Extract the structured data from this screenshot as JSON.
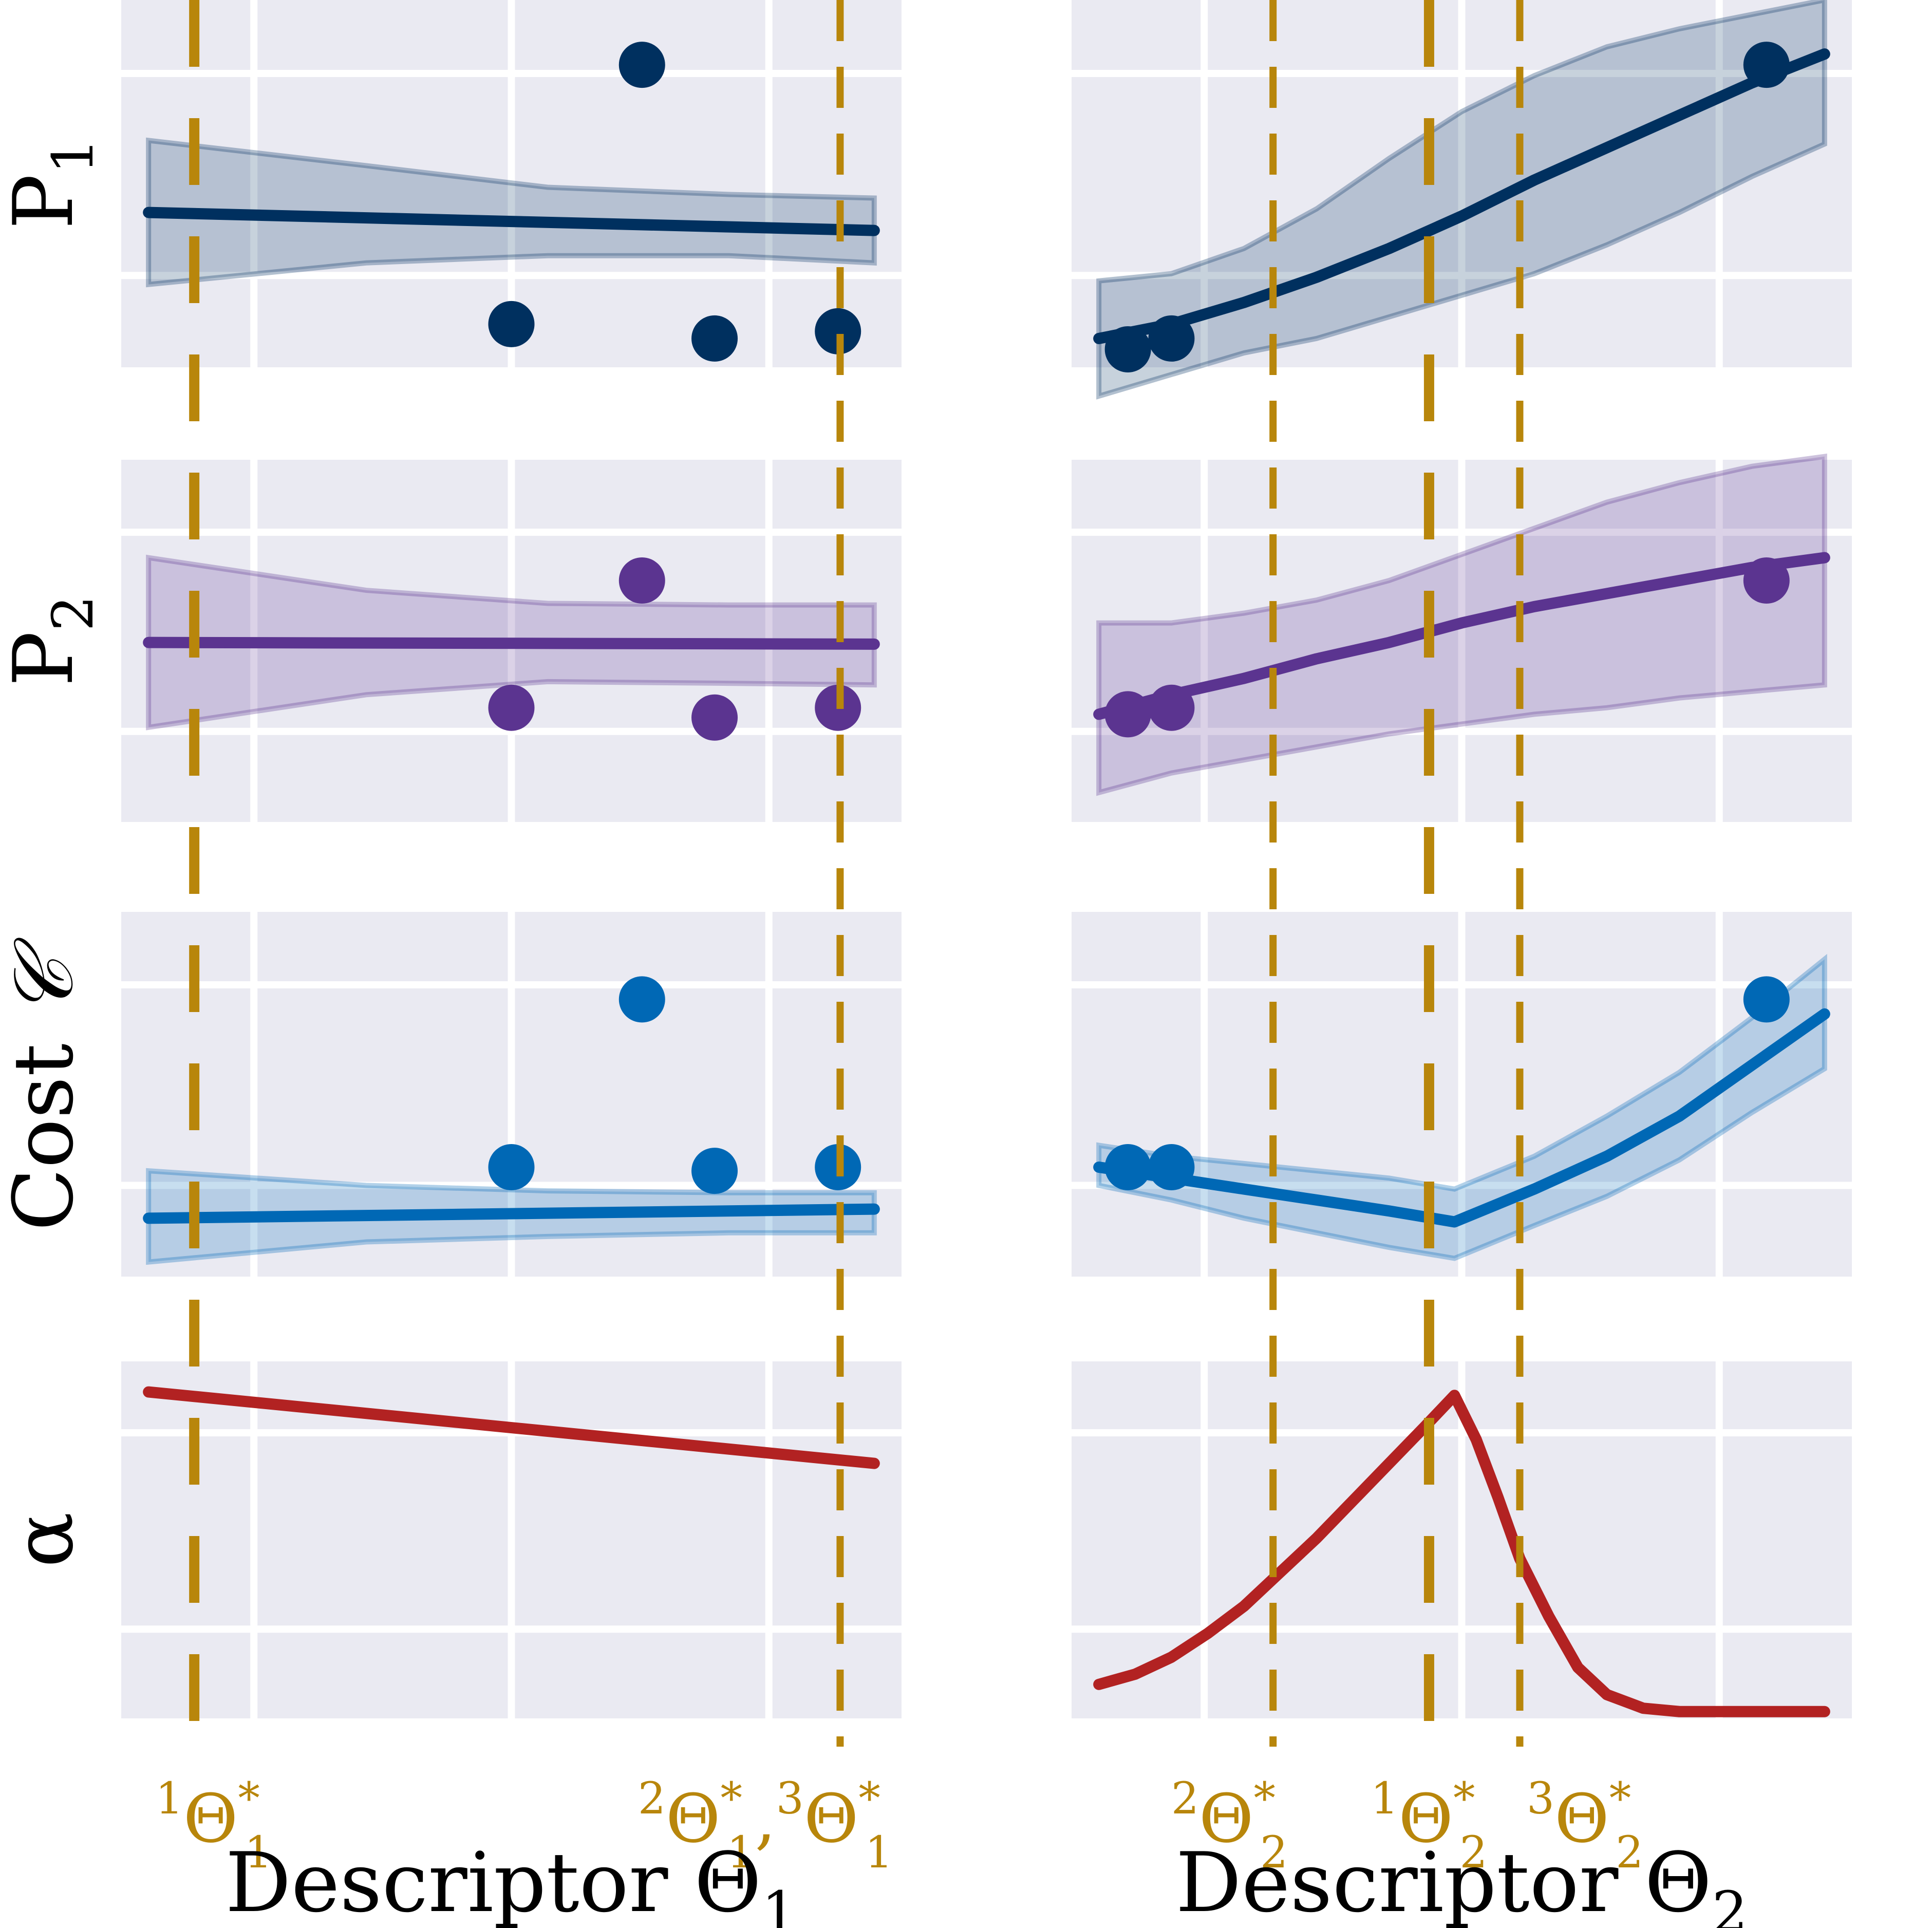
{
  "colors": {
    "panel_bg": "#eaeaf2",
    "grid": "#ffffff",
    "optimum_marker": "#b8860b",
    "P1": "#00305f",
    "P2": "#5b3490",
    "cost": "#0068b5",
    "alpha": "#b22222"
  },
  "chart_data": {
    "type": "line",
    "layout": "4 rows x 2 columns, shared y per row, shared x per column",
    "rows": [
      {
        "key": "P1",
        "ylabel_main": "P",
        "ylabel_sub": "1",
        "ylim": [
          0.8,
          11.0
        ]
      },
      {
        "key": "P2",
        "ylabel_main": "P",
        "ylabel_sub": "2",
        "ylim": [
          -0.3,
          10.8
        ]
      },
      {
        "key": "cost",
        "ylabel_main": "Cost ",
        "ylabel_symbol": "𝒞",
        "ylim": [
          0.4,
          10.4
        ]
      },
      {
        "key": "alpha",
        "ylabel_main": "α",
        "ylim": [
          0,
          1.05
        ]
      }
    ],
    "columns": [
      {
        "xlabel_main": "Descriptor Θ",
        "xlabel_sub": "1",
        "xlim": [
          0,
          1
        ],
        "optima": [
          {
            "x": 0.063,
            "dash": "long"
          },
          {
            "x": 0.953,
            "dash": "short"
          }
        ],
        "optima_labels": [
          {
            "x": 0.09,
            "parts": [
              {
                "pre": "1",
                "main": "Θ",
                "sup": "*",
                "sub": "1"
              }
            ]
          },
          {
            "x": 0.85,
            "parts": [
              {
                "pre": "2",
                "main": "Θ",
                "sup": "*",
                "sub": "1"
              },
              {
                "sep": ","
              },
              {
                "pre": "3",
                "main": "Θ",
                "sup": "*",
                "sub": "1"
              }
            ]
          }
        ],
        "panels": {
          "P1": {
            "mean": {
              "x": [
                0.0,
                1.0
              ],
              "y": [
                5.1,
                4.6
              ]
            },
            "band_upper": {
              "x": [
                0.0,
                0.3,
                0.55,
                0.8,
                1.0
              ],
              "y": [
                7.1,
                6.4,
                5.8,
                5.6,
                5.5
              ]
            },
            "band_lower": {
              "x": [
                0.0,
                0.3,
                0.55,
                0.8,
                1.0
              ],
              "y": [
                3.1,
                3.7,
                3.9,
                3.9,
                3.7
              ]
            },
            "points": {
              "x": [
                0.5,
                0.68,
                0.78,
                0.95
              ],
              "y": [
                2.0,
                9.2,
                1.6,
                1.8
              ]
            }
          },
          "P2": {
            "mean": {
              "x": [
                0.0,
                1.0
              ],
              "y": [
                5.2,
                5.15
              ]
            },
            "band_upper": {
              "x": [
                0.0,
                0.3,
                0.55,
                0.8,
                1.0
              ],
              "y": [
                7.8,
                6.8,
                6.4,
                6.35,
                6.35
              ]
            },
            "band_lower": {
              "x": [
                0.0,
                0.3,
                0.55,
                0.8,
                1.0
              ],
              "y": [
                2.6,
                3.6,
                4.0,
                3.95,
                3.9
              ]
            },
            "points": {
              "x": [
                0.5,
                0.68,
                0.78,
                0.95
              ],
              "y": [
                3.2,
                7.1,
                2.9,
                3.2
              ]
            }
          },
          "cost": {
            "mean": {
              "x": [
                0.0,
                1.0
              ],
              "y": [
                2.0,
                2.25
              ]
            },
            "band_upper": {
              "x": [
                0.0,
                0.3,
                0.55,
                0.8,
                1.0
              ],
              "y": [
                3.3,
                2.9,
                2.75,
                2.7,
                2.7
              ]
            },
            "band_lower": {
              "x": [
                0.0,
                0.3,
                0.55,
                0.8,
                1.0
              ],
              "y": [
                0.8,
                1.35,
                1.5,
                1.6,
                1.6
              ]
            },
            "points": {
              "x": [
                0.5,
                0.68,
                0.78,
                0.95
              ],
              "y": [
                3.4,
                8.0,
                3.3,
                3.4
              ]
            }
          },
          "alpha": {
            "mean": {
              "x": [
                0.0,
                1.0
              ],
              "y": [
                0.96,
                0.75
              ]
            }
          }
        }
      },
      {
        "xlabel_main": "Descriptor Θ",
        "xlabel_sub": "2",
        "xlim": [
          0,
          1
        ],
        "optima": [
          {
            "x": 0.24,
            "dash": "short"
          },
          {
            "x": 0.455,
            "dash": "long"
          },
          {
            "x": 0.58,
            "dash": "short"
          }
        ],
        "optima_labels": [
          {
            "x": 0.18,
            "parts": [
              {
                "pre": "2",
                "main": "Θ",
                "sup": "*",
                "sub": "2"
              }
            ]
          },
          {
            "x": 0.455,
            "parts": [
              {
                "pre": "1",
                "main": "Θ",
                "sup": "*",
                "sub": "2"
              }
            ]
          },
          {
            "x": 0.67,
            "parts": [
              {
                "pre": "3",
                "main": "Θ",
                "sup": "*",
                "sub": "2"
              }
            ]
          }
        ],
        "panels": {
          "P1": {
            "mean": {
              "x": [
                0.0,
                0.1,
                0.2,
                0.3,
                0.4,
                0.5,
                0.6,
                0.7,
                0.8,
                0.9,
                1.0
              ],
              "y": [
                1.6,
                2.0,
                2.6,
                3.3,
                4.1,
                5.0,
                6.0,
                6.9,
                7.8,
                8.7,
                9.5
              ]
            },
            "band_upper": {
              "x": [
                0.0,
                0.1,
                0.2,
                0.3,
                0.4,
                0.5,
                0.6,
                0.7,
                0.8,
                0.9,
                1.0
              ],
              "y": [
                3.2,
                3.4,
                4.1,
                5.2,
                6.6,
                7.9,
                8.9,
                9.7,
                10.2,
                10.6,
                11.0
              ]
            },
            "band_lower": {
              "x": [
                0.0,
                0.1,
                0.2,
                0.3,
                0.4,
                0.5,
                0.6,
                0.7,
                0.8,
                0.9,
                1.0
              ],
              "y": [
                0.0,
                0.6,
                1.2,
                1.6,
                2.2,
                2.8,
                3.4,
                4.2,
                5.1,
                6.1,
                7.0
              ]
            },
            "points": {
              "x": [
                0.04,
                0.1,
                0.92
              ],
              "y": [
                1.3,
                1.6,
                9.2
              ]
            }
          },
          "P2": {
            "mean": {
              "x": [
                0.0,
                0.1,
                0.2,
                0.3,
                0.4,
                0.5,
                0.6,
                0.7,
                0.8,
                0.9,
                1.0
              ],
              "y": [
                3.0,
                3.6,
                4.1,
                4.7,
                5.2,
                5.8,
                6.3,
                6.7,
                7.1,
                7.5,
                7.8
              ]
            },
            "band_upper": {
              "x": [
                0.0,
                0.1,
                0.2,
                0.3,
                0.4,
                0.5,
                0.6,
                0.7,
                0.8,
                0.9,
                1.0
              ],
              "y": [
                5.8,
                5.8,
                6.1,
                6.5,
                7.1,
                7.9,
                8.7,
                9.5,
                10.1,
                10.6,
                10.9
              ]
            },
            "band_lower": {
              "x": [
                0.0,
                0.1,
                0.2,
                0.3,
                0.4,
                0.5,
                0.6,
                0.7,
                0.8,
                0.9,
                1.0
              ],
              "y": [
                0.6,
                1.2,
                1.6,
                2.0,
                2.4,
                2.7,
                3.0,
                3.2,
                3.5,
                3.7,
                3.9
              ]
            },
            "points": {
              "x": [
                0.04,
                0.1,
                0.92
              ],
              "y": [
                3.0,
                3.2,
                7.1
              ]
            }
          },
          "cost": {
            "mean": {
              "x": [
                0.0,
                0.1,
                0.2,
                0.3,
                0.4,
                0.49,
                0.6,
                0.7,
                0.8,
                0.9,
                1.0
              ],
              "y": [
                3.4,
                3.1,
                2.8,
                2.5,
                2.2,
                1.9,
                2.8,
                3.7,
                4.8,
                6.2,
                7.6
              ]
            },
            "band_upper": {
              "x": [
                0.0,
                0.1,
                0.2,
                0.3,
                0.4,
                0.49,
                0.6,
                0.7,
                0.8,
                0.9,
                1.0
              ],
              "y": [
                4.0,
                3.7,
                3.5,
                3.3,
                3.1,
                2.8,
                3.7,
                4.8,
                6.0,
                7.5,
                9.1
              ]
            },
            "band_lower": {
              "x": [
                0.0,
                0.1,
                0.2,
                0.3,
                0.4,
                0.49,
                0.6,
                0.7,
                0.8,
                0.9,
                1.0
              ],
              "y": [
                2.9,
                2.5,
                2.0,
                1.6,
                1.2,
                0.9,
                1.8,
                2.6,
                3.6,
                4.9,
                6.1
              ]
            },
            "points": {
              "x": [
                0.04,
                0.1,
                0.92
              ],
              "y": [
                3.4,
                3.4,
                8.0
              ]
            }
          },
          "alpha": {
            "mean": {
              "x": [
                0.0,
                0.05,
                0.1,
                0.15,
                0.2,
                0.25,
                0.3,
                0.35,
                0.4,
                0.45,
                0.49,
                0.52,
                0.55,
                0.58,
                0.62,
                0.66,
                0.7,
                0.75,
                0.8,
                0.9,
                1.0
              ],
              "y": [
                0.1,
                0.13,
                0.18,
                0.25,
                0.33,
                0.43,
                0.53,
                0.64,
                0.75,
                0.86,
                0.95,
                0.82,
                0.65,
                0.47,
                0.3,
                0.15,
                0.07,
                0.03,
                0.02,
                0.02,
                0.02
              ]
            }
          }
        }
      }
    ]
  }
}
